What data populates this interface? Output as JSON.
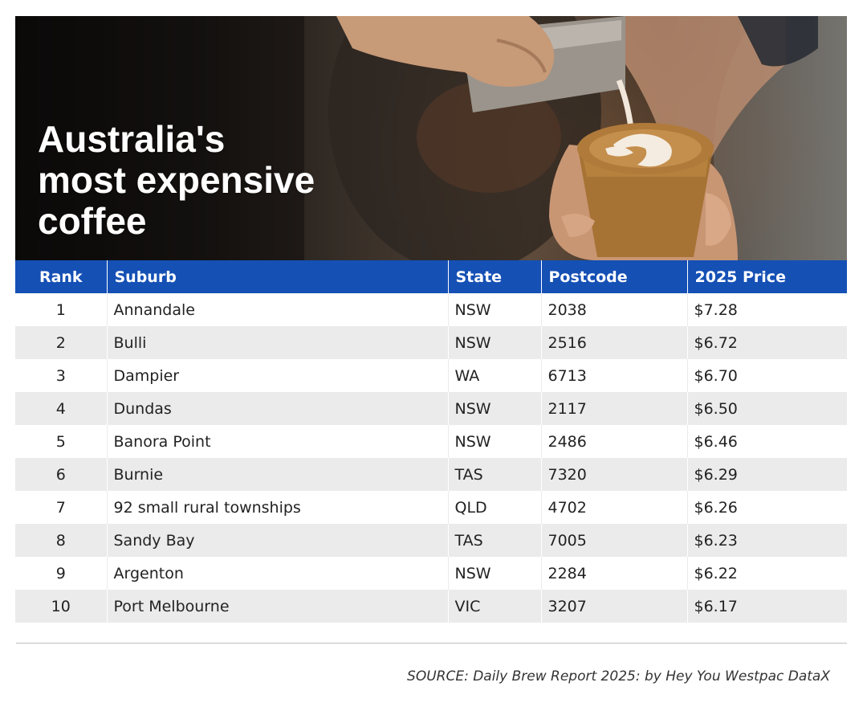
{
  "hero": {
    "title": "Australia's\nmost expensive\ncoffee"
  },
  "chart_data": {
    "type": "table",
    "title": "Australia's most expensive coffee",
    "columns": [
      "Rank",
      "Suburb",
      "State",
      "Postcode",
      "2025 Price"
    ],
    "rows": [
      [
        "1",
        "Annandale",
        "NSW",
        "2038",
        "$7.28"
      ],
      [
        "2",
        "Bulli",
        "NSW",
        "2516",
        "$6.72"
      ],
      [
        "3",
        "Dampier",
        "WA",
        "6713",
        "$6.70"
      ],
      [
        "4",
        "Dundas",
        "NSW",
        "2117",
        "$6.50"
      ],
      [
        "5",
        "Banora Point",
        "NSW",
        "2486",
        "$6.46"
      ],
      [
        "6",
        "Burnie",
        "TAS",
        "7320",
        "$6.29"
      ],
      [
        "7",
        "92 small rural townships",
        "QLD",
        "4702",
        "$6.26"
      ],
      [
        "8",
        "Sandy Bay",
        "TAS",
        "7005",
        "$6.23"
      ],
      [
        "9",
        "Argenton",
        "NSW",
        "2284",
        "$6.22"
      ],
      [
        "10",
        "Port Melbourne",
        "VIC",
        "3207",
        "$6.17"
      ]
    ]
  },
  "source": "SOURCE: Daily Brew Report 2025: by Hey You Westpac DataX",
  "colors": {
    "header_bg": "#1550b5",
    "stripe_bg": "#ebebeb",
    "title_text": "#ffffff"
  }
}
